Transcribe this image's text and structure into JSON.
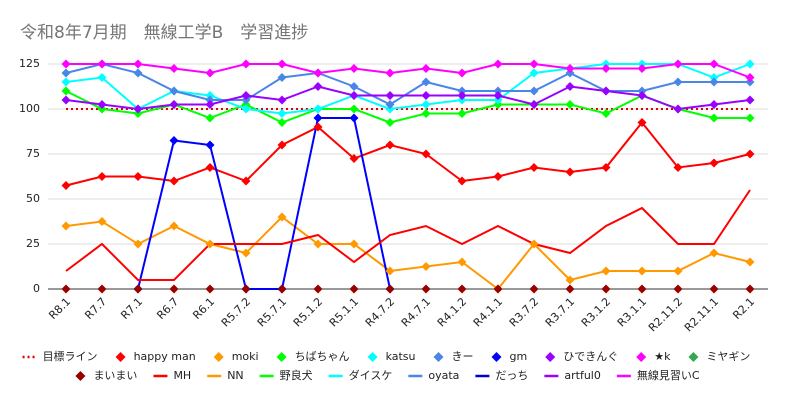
{
  "chart_data": {
    "type": "line",
    "title": "令和8年7月期　無線工学B　学習進捗",
    "categories": [
      "R8.1",
      "R7.7",
      "R7.1",
      "R6.7",
      "R6.1",
      "R5.7.2",
      "R5.7.1",
      "R5.1.2",
      "R5.1.1",
      "R4.7.2",
      "R4.7.1",
      "R4.1.2",
      "R4.1.1",
      "R3.7.2",
      "R3.7.1",
      "R3.1.2",
      "R3.1.1",
      "R2.11.2",
      "R2.11.1",
      "R2.1"
    ],
    "ylim": [
      0,
      125
    ],
    "yticks": [
      0,
      25,
      50,
      75,
      100,
      125
    ],
    "grid": true,
    "series": [
      {
        "name": "目標ライン",
        "color": "#e00000",
        "line": true,
        "marker": false,
        "dashed": true,
        "values": [
          100,
          100,
          100,
          100,
          100,
          100,
          100,
          100,
          100,
          100,
          100,
          100,
          100,
          100,
          100,
          100,
          100,
          100,
          100,
          100
        ]
      },
      {
        "name": "happy man",
        "color": "#ff0000",
        "line": true,
        "marker": true,
        "values": [
          57.5,
          62.5,
          62.5,
          60,
          67.5,
          60,
          80,
          90,
          72.5,
          80,
          75,
          60,
          62.5,
          67.5,
          65,
          67.5,
          92.5,
          67.5,
          70,
          75
        ]
      },
      {
        "name": "moki",
        "color": "#ff9900",
        "line": true,
        "marker": true,
        "values": [
          35,
          37.5,
          25,
          35,
          25,
          20,
          40,
          25,
          25,
          10,
          12.5,
          15,
          0,
          25,
          5,
          10,
          10,
          10,
          20,
          15
        ]
      },
      {
        "name": "ちばちゃん",
        "color": "#00ff00",
        "line": true,
        "marker": true,
        "values": [
          110,
          100,
          97.5,
          102.5,
          95,
          102.5,
          92.5,
          100,
          100,
          92.5,
          97.5,
          97.5,
          102.5,
          102.5,
          102.5,
          97.5,
          107.5,
          100,
          95,
          95
        ]
      },
      {
        "name": "katsu",
        "color": "#00ffff",
        "line": true,
        "marker": true,
        "values": [
          115,
          117.5,
          100,
          110,
          107.5,
          100,
          97.5,
          100,
          107.5,
          100,
          102.5,
          105,
          105,
          120,
          122.5,
          125,
          125,
          125,
          117.5,
          125
        ]
      },
      {
        "name": "きー",
        "color": "#4a86e8",
        "line": true,
        "marker": true,
        "values": [
          120,
          125,
          120,
          110,
          105,
          105,
          117.5,
          120,
          112.5,
          102.5,
          115,
          110,
          110,
          110,
          120,
          110,
          110,
          115,
          115,
          115
        ]
      },
      {
        "name": "gm",
        "color": "#0000ff",
        "line": true,
        "marker": true,
        "values": [
          null,
          null,
          0,
          82.5,
          80,
          0,
          0,
          95,
          95,
          0,
          null,
          null,
          null,
          null,
          null,
          null,
          null,
          null,
          null,
          null
        ]
      },
      {
        "name": "ひできんぐ",
        "color": "#9900ff",
        "line": true,
        "marker": true,
        "values": [
          105,
          102.5,
          100,
          102.5,
          102.5,
          107.5,
          105,
          112.5,
          107.5,
          107.5,
          107.5,
          107.5,
          107.5,
          102.5,
          112.5,
          110,
          107.5,
          100,
          102.5,
          105
        ]
      },
      {
        "name": "★k",
        "color": "#ff00ff",
        "line": true,
        "marker": true,
        "values": [
          125,
          125,
          125,
          122.5,
          120,
          125,
          125,
          120,
          122.5,
          120,
          122.5,
          120,
          125,
          125,
          122.5,
          122.5,
          122.5,
          125,
          125,
          117.5
        ]
      },
      {
        "name": "ミヤギン",
        "color": "#34a853",
        "line": false,
        "marker": true,
        "values": [
          null,
          null,
          null,
          null,
          null,
          null,
          null,
          null,
          null,
          null,
          null,
          null,
          null,
          null,
          null,
          null,
          null,
          null,
          null,
          null
        ]
      },
      {
        "name": "まいまい",
        "color": "#980000",
        "line": false,
        "marker": true,
        "values": [
          0,
          0,
          0,
          0,
          0,
          0,
          0,
          0,
          0,
          0,
          0,
          0,
          0,
          0,
          0,
          0,
          0,
          0,
          0,
          0
        ]
      },
      {
        "name": "MH",
        "color": "#ff0000",
        "line": true,
        "marker": false,
        "values": [
          10,
          25,
          5,
          5,
          25,
          25,
          25,
          30,
          15,
          30,
          35,
          25,
          35,
          25,
          20,
          35,
          45,
          25,
          25,
          55
        ]
      },
      {
        "name": "NN",
        "color": "#ff9900",
        "line": true,
        "marker": false,
        "values": [
          null,
          null,
          null,
          null,
          null,
          null,
          null,
          null,
          null,
          null,
          null,
          null,
          null,
          null,
          null,
          null,
          null,
          null,
          null,
          null
        ]
      },
      {
        "name": "野良犬",
        "color": "#00ff00",
        "line": true,
        "marker": false,
        "values": [
          null,
          null,
          null,
          null,
          null,
          null,
          null,
          null,
          null,
          null,
          null,
          null,
          null,
          null,
          null,
          null,
          null,
          null,
          null,
          null
        ]
      },
      {
        "name": "ダイスケ",
        "color": "#00ffff",
        "line": true,
        "marker": false,
        "values": [
          null,
          null,
          null,
          null,
          null,
          null,
          null,
          null,
          null,
          null,
          null,
          null,
          null,
          null,
          null,
          null,
          null,
          null,
          null,
          null
        ]
      },
      {
        "name": "oyata",
        "color": "#4a86e8",
        "line": true,
        "marker": false,
        "values": [
          null,
          null,
          null,
          null,
          null,
          null,
          null,
          null,
          null,
          null,
          null,
          null,
          null,
          null,
          null,
          null,
          null,
          null,
          null,
          null
        ]
      },
      {
        "name": "だっち",
        "color": "#0000cc",
        "line": true,
        "marker": false,
        "values": [
          null,
          null,
          null,
          null,
          null,
          null,
          null,
          null,
          null,
          null,
          null,
          null,
          null,
          null,
          null,
          null,
          null,
          null,
          null,
          null
        ]
      },
      {
        "name": "artful0",
        "color": "#9900ff",
        "line": true,
        "marker": false,
        "values": [
          null,
          null,
          null,
          null,
          null,
          null,
          null,
          null,
          null,
          null,
          null,
          null,
          null,
          null,
          null,
          null,
          null,
          null,
          null,
          null
        ]
      },
      {
        "name": "無線見習いC",
        "color": "#ff00ff",
        "line": true,
        "marker": false,
        "values": [
          null,
          null,
          null,
          null,
          null,
          null,
          null,
          null,
          null,
          null,
          null,
          null,
          null,
          null,
          null,
          null,
          null,
          null,
          null,
          null
        ]
      }
    ]
  }
}
